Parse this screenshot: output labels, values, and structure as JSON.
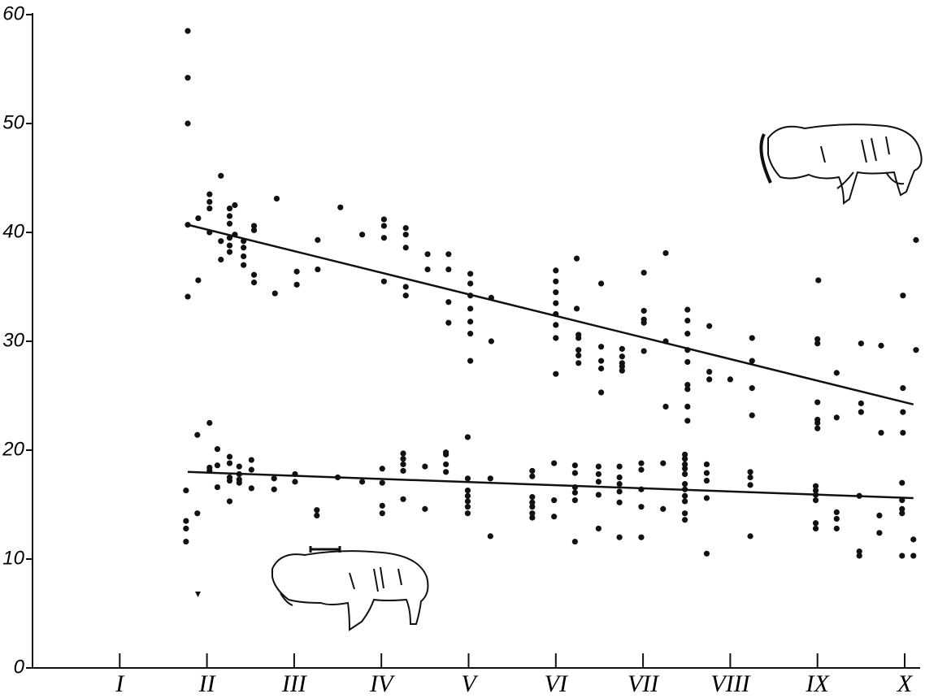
{
  "chart_data": {
    "type": "scatter",
    "xlim": [
      0,
      10.2
    ],
    "ylim": [
      0,
      60
    ],
    "xticks": [
      {
        "value": 1,
        "label": "I"
      },
      {
        "value": 2,
        "label": "II"
      },
      {
        "value": 3,
        "label": "III"
      },
      {
        "value": 4,
        "label": "IV"
      },
      {
        "value": 5,
        "label": "V"
      },
      {
        "value": 6,
        "label": "VI"
      },
      {
        "value": 7,
        "label": "VII"
      },
      {
        "value": 8,
        "label": "VIII"
      },
      {
        "value": 9,
        "label": "IX"
      },
      {
        "value": 10,
        "label": "X"
      }
    ],
    "yticks": [
      0,
      10,
      20,
      30,
      40,
      50,
      60
    ],
    "series": [
      {
        "color": "#111111",
        "x": [
          1.78,
          1.78,
          1.78,
          1.78,
          1.78,
          1.9,
          1.9,
          2.03,
          2.03,
          2.03,
          2.03,
          2.16,
          2.16,
          2.16,
          2.26,
          2.26,
          2.26,
          2.26,
          2.26,
          2.26,
          2.32,
          2.32,
          2.42,
          2.42,
          2.42,
          2.42,
          2.54,
          2.54,
          2.54,
          2.54,
          2.78,
          2.8,
          3.03,
          3.03,
          3.27,
          3.27,
          3.53,
          3.78,
          4.03,
          4.03,
          4.03,
          4.03,
          4.28,
          4.28,
          4.28,
          4.28,
          4.28,
          4.53,
          4.53,
          4.77,
          4.77,
          4.77,
          4.77,
          5.02,
          5.02,
          5.02,
          5.02,
          5.02,
          5.02,
          5.02,
          5.26,
          5.26,
          6,
          6,
          6,
          6,
          6,
          6,
          6,
          6,
          6.24,
          6.24,
          6.26,
          6.26,
          6.26,
          6.26,
          6.26,
          6.52,
          6.52,
          6.52,
          6.52,
          6.52,
          6.76,
          6.76,
          6.76,
          6.76,
          6.76,
          7.01,
          7.01,
          7.01,
          7.01,
          7.01,
          7.26,
          7.26,
          7.26,
          7.51,
          7.51,
          7.51,
          7.51,
          7.51,
          7.51,
          7.51,
          7.51,
          7.51,
          7.76,
          7.76,
          7.76,
          8,
          8.25,
          8.25,
          8.25,
          8.25,
          9,
          9,
          9,
          9,
          9,
          9,
          9.01,
          9.22,
          9.22,
          9.5,
          9.5,
          9.5,
          9.73,
          9.73,
          9.98,
          9.98,
          9.98,
          9.98,
          10.13,
          10.13
        ],
        "values": [
          58.5,
          54.2,
          50,
          40.7,
          34.1,
          35.6,
          41.3,
          43.5,
          42.8,
          42.2,
          40,
          45.2,
          39.2,
          37.5,
          42.2,
          41.5,
          40.8,
          39.5,
          38.8,
          38.2,
          42.5,
          39.8,
          39.2,
          38.6,
          37.8,
          37,
          40.6,
          40.2,
          36.1,
          35.4,
          34.4,
          43.1,
          36.4,
          35.2,
          39.3,
          36.6,
          42.3,
          39.8,
          41.2,
          40.6,
          39.5,
          35.5,
          40.4,
          39.8,
          38.6,
          35,
          34.2,
          38,
          36.6,
          38,
          36.6,
          33.6,
          31.7,
          36.2,
          35.3,
          34.2,
          33,
          31.8,
          30.7,
          28.2,
          34,
          30,
          36.5,
          35.5,
          34.5,
          33.5,
          32.5,
          31.5,
          30.3,
          27,
          37.6,
          33,
          30.6,
          30.3,
          29.2,
          28.7,
          28,
          35.3,
          29.5,
          28.2,
          27.5,
          25.3,
          29.3,
          28.6,
          28,
          27.7,
          27.3,
          36.3,
          32.8,
          32,
          31.7,
          29.1,
          38.1,
          30,
          24,
          32.9,
          31.9,
          30.7,
          29.2,
          28.1,
          26,
          25.6,
          24,
          22.7,
          31.4,
          27.2,
          26.5,
          26.5,
          30.3,
          28.2,
          25.7,
          23.2,
          30.2,
          29.8,
          22.8,
          22.5,
          22,
          24.4,
          35.6,
          27.1,
          23,
          29.8,
          24.3,
          23.5,
          29.6,
          21.6,
          34.2,
          25.7,
          23.5,
          21.6,
          39.3,
          29.2
        ]
      },
      {
        "color": "#111111",
        "x": [
          1.76,
          1.76,
          1.76,
          1.76,
          1.89,
          1.89,
          2.03,
          2.03,
          2.03,
          2.12,
          2.12,
          2.12,
          2.26,
          2.26,
          2.26,
          2.26,
          2.26,
          2.37,
          2.37,
          2.37,
          2.37,
          2.51,
          2.51,
          2.51,
          2.77,
          2.77,
          3.01,
          3.01,
          3.26,
          3.26,
          3.5,
          3.78,
          4.01,
          4.01,
          4.01,
          4.01,
          4.25,
          4.25,
          4.25,
          4.25,
          4.25,
          4.5,
          4.5,
          4.74,
          4.74,
          4.74,
          4.74,
          4.99,
          4.99,
          4.99,
          4.99,
          4.99,
          4.99,
          4.99,
          5.25,
          5.25,
          5.73,
          5.73,
          5.73,
          5.73,
          5.73,
          5.73,
          5.73,
          5.98,
          5.98,
          5.98,
          6.22,
          6.22,
          6.22,
          6.22,
          6.22,
          6.22,
          6.49,
          6.49,
          6.49,
          6.49,
          6.49,
          6.73,
          6.73,
          6.73,
          6.73,
          6.73,
          6.73,
          6.98,
          6.98,
          6.98,
          6.98,
          6.98,
          7.23,
          7.23,
          7.48,
          7.48,
          7.48,
          7.48,
          7.48,
          7.48,
          7.48,
          7.48,
          7.48,
          7.48,
          7.48,
          7.73,
          7.73,
          7.73,
          7.73,
          7.73,
          8.23,
          8.23,
          8.23,
          8.23,
          8.98,
          8.98,
          8.98,
          8.98,
          8.98,
          8.98,
          9.22,
          9.22,
          9.22,
          9.48,
          9.48,
          9.48,
          9.71,
          9.71,
          9.97,
          9.97,
          9.97,
          9.97,
          9.97,
          10.1,
          10.1
        ],
        "values": [
          16.3,
          13.5,
          12.8,
          11.6,
          21.4,
          14.2,
          22.5,
          18.4,
          18.1,
          20.1,
          18.6,
          16.6,
          19.4,
          18.8,
          17.5,
          17.2,
          15.3,
          18.5,
          17.8,
          17.3,
          17,
          19.1,
          18.2,
          16.5,
          17.4,
          16.4,
          17.8,
          17.1,
          14.5,
          14,
          17.5,
          17.1,
          18.3,
          17,
          14.9,
          14.2,
          19.7,
          19.2,
          18.7,
          18.1,
          15.5,
          18.5,
          14.6,
          19.8,
          19.6,
          18.7,
          18,
          21.2,
          17.4,
          16.3,
          15.8,
          15.3,
          14.8,
          14.2,
          17.4,
          12.1,
          18.1,
          17.6,
          15.7,
          15.2,
          14.8,
          14.2,
          13.8,
          18.8,
          15.4,
          13.9,
          18.6,
          17.9,
          16.6,
          16.1,
          15.4,
          11.6,
          18.5,
          17.8,
          17.1,
          15.9,
          12.8,
          18.5,
          17.5,
          16.9,
          16.2,
          15.2,
          12,
          18.8,
          18.2,
          16.4,
          14.8,
          12,
          18.8,
          14.6,
          19.6,
          19.2,
          18.7,
          18.3,
          17.8,
          16.9,
          16.4,
          15.8,
          15.3,
          14.2,
          13.6,
          18.7,
          17.9,
          17.2,
          15.6,
          10.5,
          18,
          17.5,
          16.8,
          12.1,
          16.7,
          16.3,
          15.9,
          15.4,
          13.3,
          12.8,
          14.3,
          13.7,
          12.8,
          15.8,
          10.7,
          10.3,
          14,
          12.4,
          17,
          15.4,
          14.6,
          14.2,
          10.3,
          11.8,
          10.3
        ]
      }
    ],
    "trend_lines": [
      {
        "color": "#111111",
        "x": [
          1.78,
          10.1
        ],
        "values": [
          40.7,
          24.2
        ]
      },
      {
        "color": "#111111",
        "x": [
          1.78,
          10.1
        ],
        "values": [
          18,
          15.6
        ]
      }
    ]
  }
}
